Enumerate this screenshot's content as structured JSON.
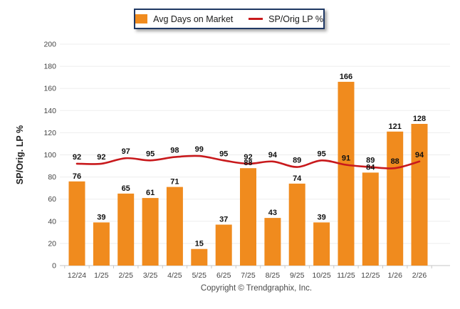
{
  "legend": {
    "series1_label": "Avg Days on Market",
    "series2_label": "SP/Orig LP %"
  },
  "ylabel": "SP/Orig. LP %",
  "copyright": "Copyright © Trendgraphix, Inc.",
  "colors": {
    "bar": "#F08B1E",
    "line": "#C8191C",
    "legend_border": "#1F3864",
    "grid": "#EDEDED",
    "axis": "#C6C6C6",
    "tick_label": "#434343",
    "data_label": "#111111",
    "axis_title": "#1A1A1A",
    "copyright": "#4A4A4A"
  },
  "chart_data": {
    "type": "bar",
    "categories": [
      "12/24",
      "1/25",
      "2/25",
      "3/25",
      "4/25",
      "5/25",
      "6/25",
      "7/25",
      "8/25",
      "9/25",
      "10/25",
      "11/25",
      "12/25",
      "1/26",
      "2/26"
    ],
    "series": [
      {
        "name": "Avg Days on Market",
        "type": "bar",
        "values": [
          76,
          39,
          65,
          61,
          71,
          15,
          37,
          88,
          43,
          74,
          39,
          166,
          84,
          121,
          128
        ]
      },
      {
        "name": "SP/Orig LP %",
        "type": "line",
        "values": [
          92,
          92,
          97,
          95,
          98,
          99,
          95,
          92,
          94,
          89,
          95,
          91,
          89,
          88,
          94
        ]
      }
    ],
    "title": "",
    "xlabel": "",
    "ylabel": "SP/Orig. LP %",
    "ylim": [
      0,
      200
    ],
    "ytick_step": 20,
    "grid": true,
    "legend_position": "top",
    "data_labels": true
  }
}
